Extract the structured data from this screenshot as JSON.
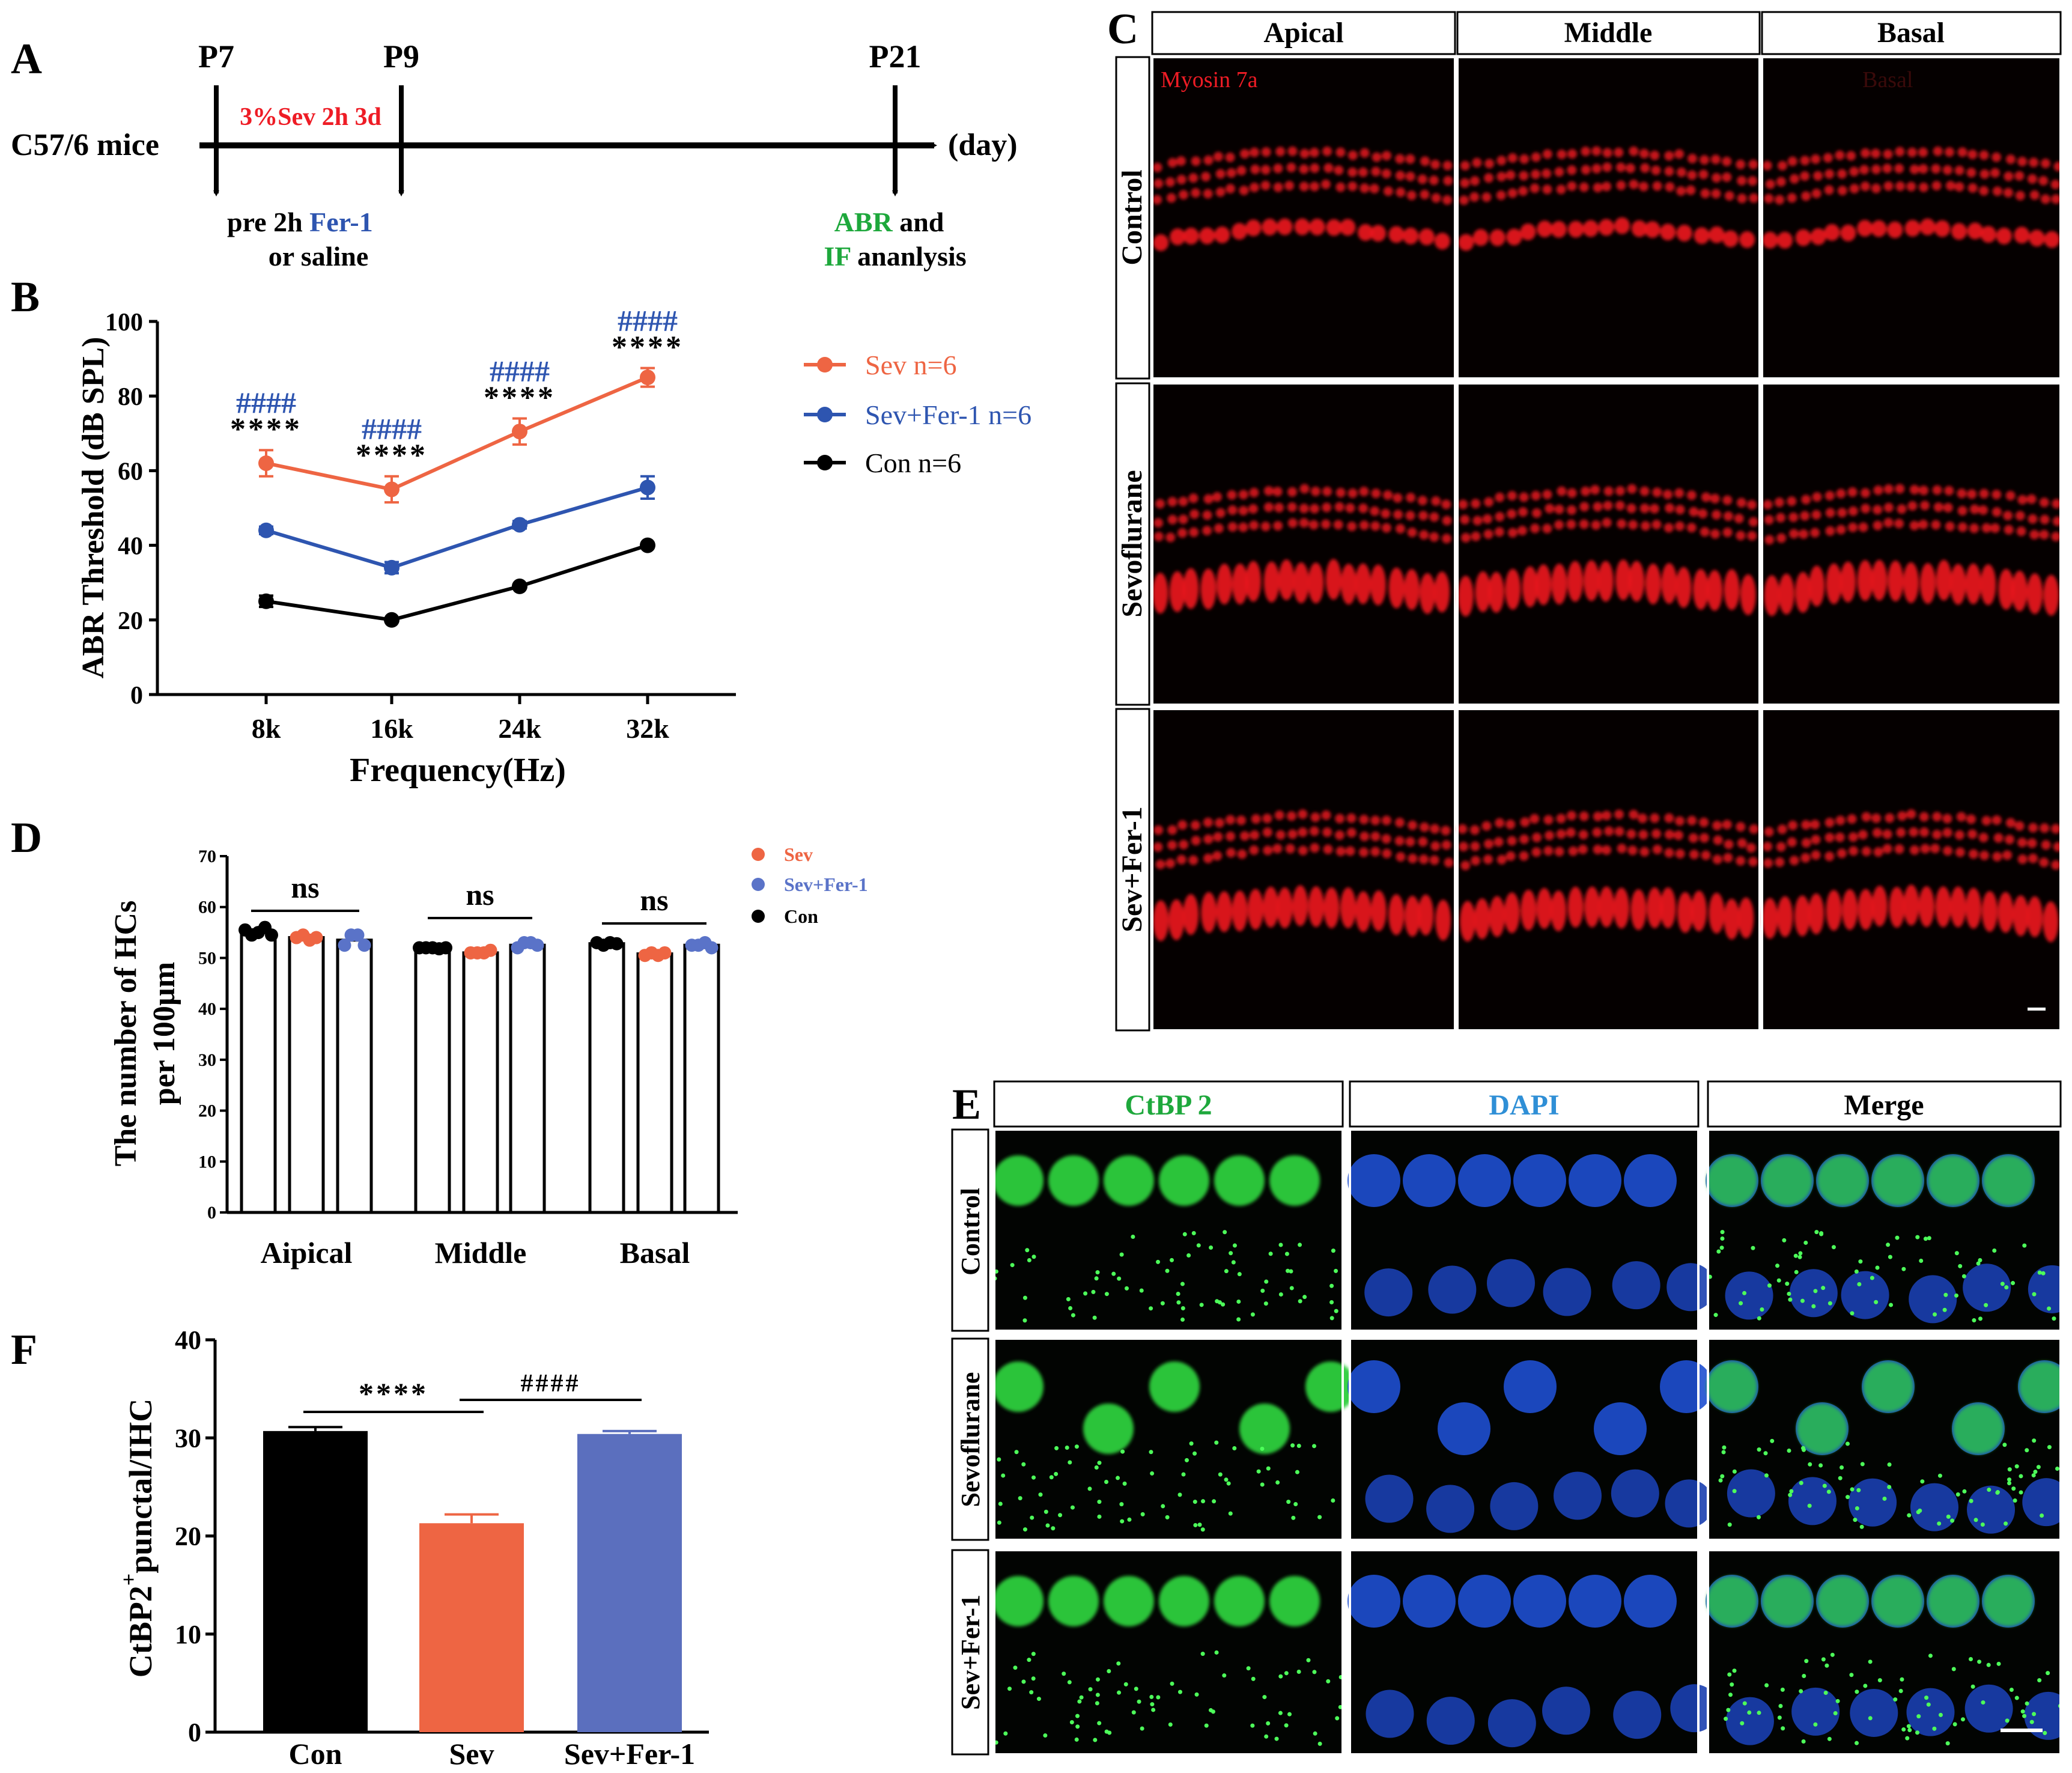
{
  "panel_labels": {
    "a": "A",
    "b": "B",
    "c": "C",
    "d": "D",
    "e": "E",
    "f": "F"
  },
  "colors": {
    "sev": "#ee6543",
    "fer": "#2e55b0",
    "con": "#000000",
    "fer_bar": "#5b6fbe",
    "fer_dot": "#5a73c8",
    "hash": "#2e55b0",
    "green": "#1ea83c",
    "blue_text": "#2f8fd6",
    "red": "#ee1c25"
  },
  "panel_a": {
    "strain": "C57/6 mice",
    "days": [
      "P7",
      "P9",
      "P21"
    ],
    "unit": "(day)",
    "exposure": "3%Sev 2h 3d",
    "pre_prefix": "pre 2h ",
    "pre_drug": "Fer-1",
    "pre_alt": "or saline",
    "abr": "ABR",
    "and": " and",
    "if": "IF",
    "analysis": " ananlysis"
  },
  "chart_data": [
    {
      "id": "B",
      "type": "line",
      "title": "",
      "xlabel": "Frequency(Hz)",
      "ylabel": "ABR Threshold (dB SPL)",
      "categories": [
        "8k",
        "16k",
        "24k",
        "32k"
      ],
      "ylim": [
        0,
        100
      ],
      "yticks": [
        "0",
        "20",
        "40",
        "60",
        "80",
        "100"
      ],
      "series": [
        {
          "name": "Sev n=6",
          "values": [
            62,
            55,
            70.5,
            85
          ],
          "errors": [
            3.5,
            3.5,
            3.5,
            2.5
          ],
          "color": "#ee6543"
        },
        {
          "name": "Sev+Fer-1 n=6",
          "values": [
            44,
            34,
            45.5,
            55.5
          ],
          "errors": [
            1,
            1.5,
            1,
            3
          ],
          "color": "#2e55b0"
        },
        {
          "name": "Con n=6",
          "values": [
            25,
            20,
            29,
            40
          ],
          "errors": [
            1.5,
            0.5,
            0.5,
            0.5
          ],
          "color": "#000000"
        }
      ],
      "annotations": [
        {
          "hash": "####",
          "stars": "****"
        },
        {
          "hash": "####",
          "stars": "****"
        },
        {
          "hash": "####",
          "stars": "****"
        },
        {
          "hash": "####",
          "stars": "****"
        }
      ],
      "legend_position": "right"
    },
    {
      "id": "D",
      "type": "bar",
      "title": "",
      "xlabel": "",
      "ylabel_line1": "The number of HCs",
      "ylabel_line2": "per 100µm",
      "categories": [
        "Aipical",
        "Middle",
        "Basal"
      ],
      "ylim": [
        0,
        70
      ],
      "yticks": [
        "0",
        "10",
        "20",
        "30",
        "40",
        "50",
        "60",
        "70"
      ],
      "series": [
        {
          "name": "Con",
          "values": [
            55,
            52,
            52.8
          ],
          "errors": [
            0.6,
            0.3,
            0.3
          ],
          "color": "#000000"
        },
        {
          "name": "Sev",
          "values": [
            54,
            51,
            50.8
          ],
          "errors": [
            0.5,
            0.4,
            0.5
          ],
          "color": "#ee6543"
        },
        {
          "name": "Sev+Fer-1",
          "values": [
            53.5,
            52.5,
            52.5
          ],
          "errors": [
            0.8,
            0.6,
            0.6
          ],
          "color": "#5a73c8"
        }
      ],
      "points": [
        [
          [
            55.5,
            54.5,
            55,
            56,
            54.5
          ],
          [
            54,
            54.5,
            53.5,
            54
          ],
          [
            52.5,
            54.5,
            54.5,
            52.5
          ]
        ],
        [
          [
            52,
            52,
            52,
            51.8,
            52
          ],
          [
            51,
            51,
            51,
            51.5
          ],
          [
            52,
            53,
            53,
            52.5
          ]
        ],
        [
          [
            53,
            52.5,
            53,
            52.8
          ],
          [
            50.5,
            51,
            50.5,
            51
          ],
          [
            52.5,
            52.5,
            53,
            52
          ]
        ]
      ],
      "annotations": [
        "ns",
        "ns",
        "ns"
      ],
      "legend": [
        "Sev",
        "Sev+Fer-1",
        "Con"
      ],
      "legend_position": "top-right"
    },
    {
      "id": "F",
      "type": "bar",
      "title": "",
      "xlabel": "",
      "ylabel_main": "CtBP2",
      "ylabel_sup": "+",
      "ylabel_rest": "punctal/IHC",
      "categories": [
        "Con",
        "Sev",
        "Sev+Fer-1"
      ],
      "values": [
        30.7,
        21.3,
        30.4
      ],
      "errors": [
        0.4,
        0.9,
        0.3
      ],
      "colors": [
        "#000000",
        "#ee6543",
        "#5b6fbe"
      ],
      "ylim": [
        0,
        40
      ],
      "yticks": [
        "0",
        "10",
        "20",
        "30",
        "40"
      ],
      "annotations": [
        {
          "text": "****",
          "from": "Con",
          "to": "Sev"
        },
        {
          "text": "####",
          "from": "Sev",
          "to": "Sev+Fer-1"
        }
      ]
    }
  ],
  "panel_c": {
    "columns": [
      "Apical",
      "Middle",
      "Basal"
    ],
    "rows": [
      "Control",
      "Sevoflurane",
      "Sev+Fer-1"
    ],
    "stain": "Myosin 7a",
    "faint_label": "Basal"
  },
  "panel_e": {
    "columns": [
      "CtBP 2",
      "DAPI",
      "Merge"
    ],
    "rows": [
      "Control",
      "Sevoflurane",
      "Sev+Fer-1"
    ]
  }
}
